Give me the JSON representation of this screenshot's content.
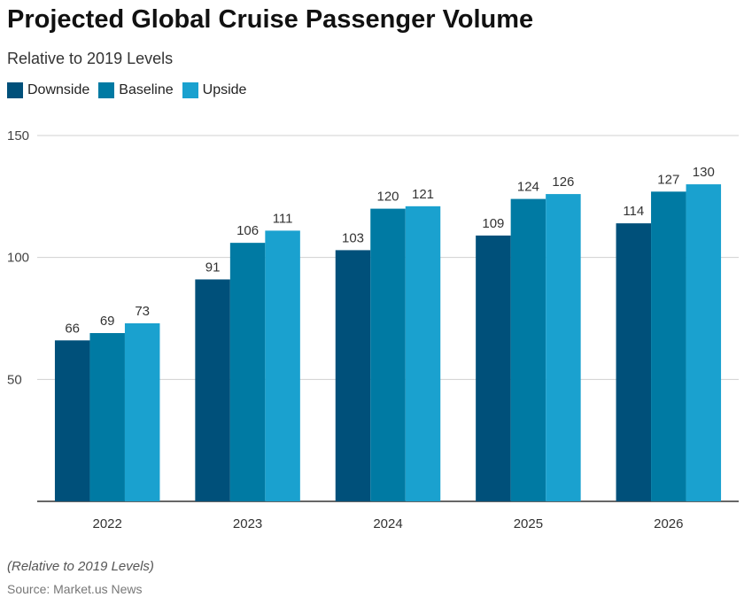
{
  "chart_data": {
    "type": "bar",
    "title": "Projected Global Cruise Passenger Volume",
    "subtitle": "Relative to 2019 Levels",
    "categories": [
      "2022",
      "2023",
      "2024",
      "2025",
      "2026"
    ],
    "series": [
      {
        "name": "Downside",
        "color": "#00507A",
        "values": [
          66,
          91,
          103,
          109,
          114
        ]
      },
      {
        "name": "Baseline",
        "color": "#007AA3",
        "values": [
          69,
          106,
          120,
          124,
          127
        ]
      },
      {
        "name": "Upside",
        "color": "#1AA1CF",
        "values": [
          73,
          111,
          121,
          126,
          130
        ]
      }
    ],
    "yticks": [
      "50",
      "100",
      "150"
    ],
    "ylim": [
      0,
      150
    ],
    "xlabel": "",
    "ylabel": "",
    "grid": true,
    "legend_position": "top-left",
    "note": "(Relative to 2019 Levels)",
    "source": "Source: Market.us News"
  }
}
